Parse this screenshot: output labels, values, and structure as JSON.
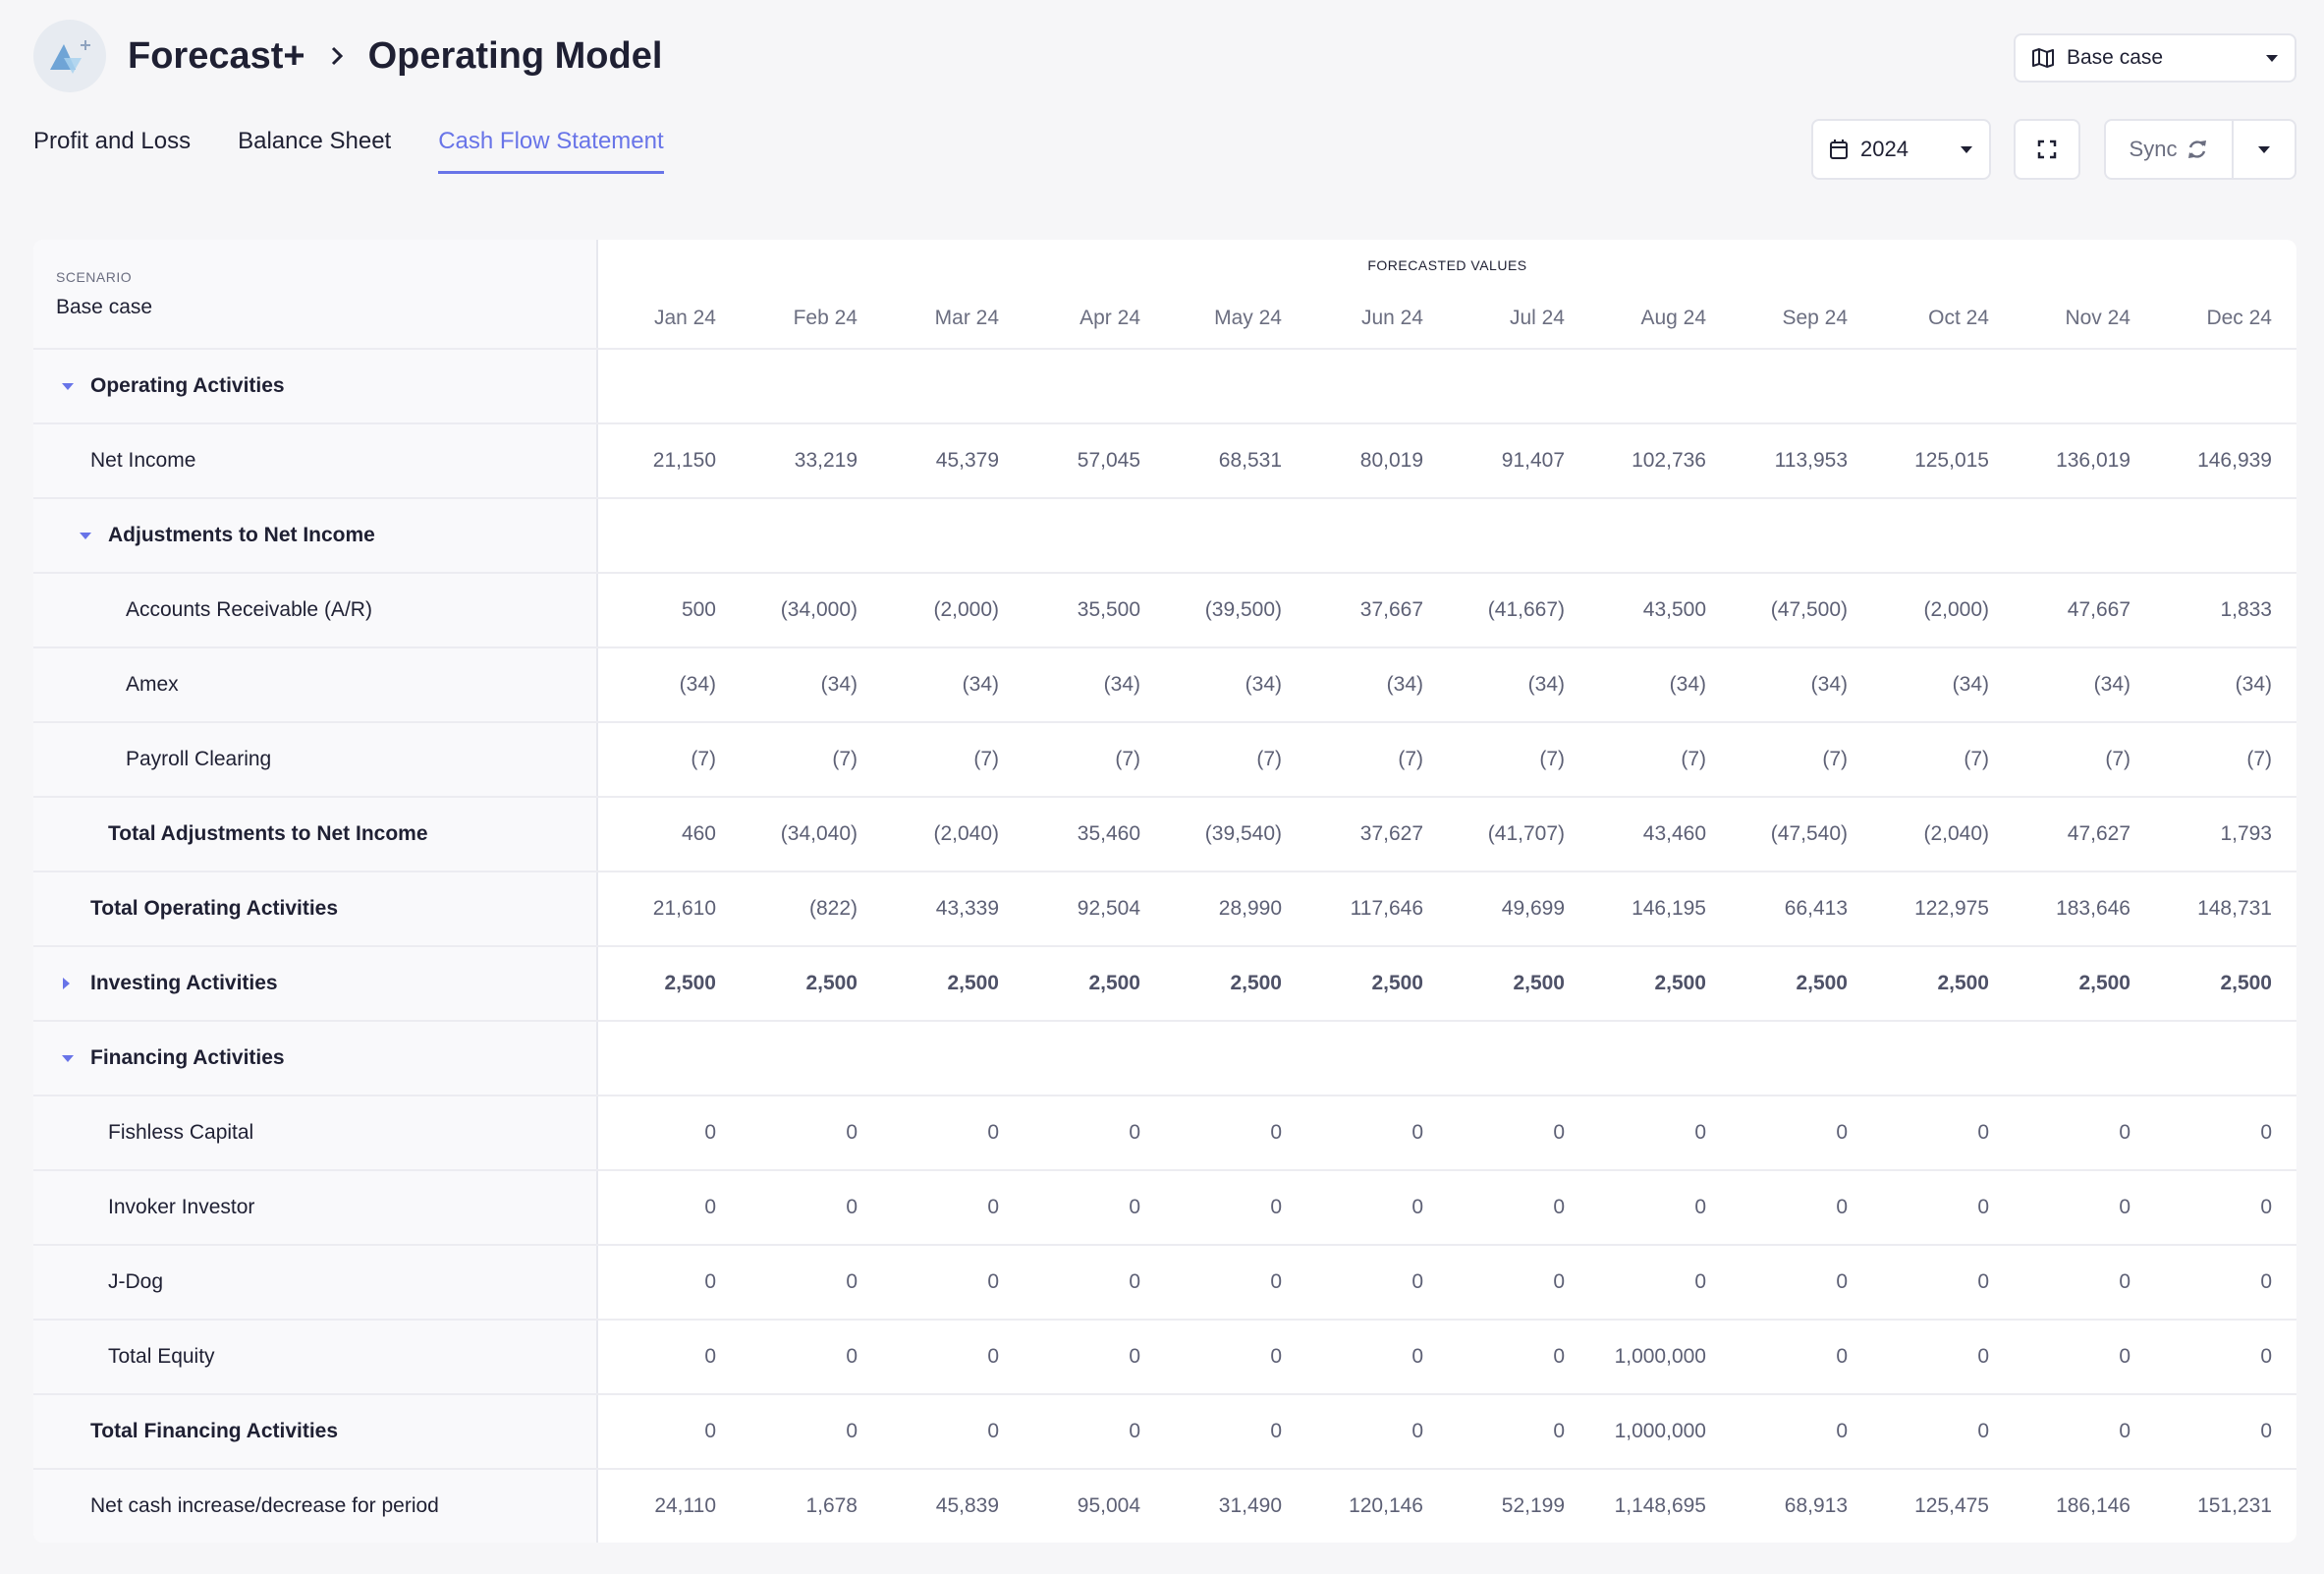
{
  "header": {
    "app": "Forecast+",
    "page": "Operating Model",
    "scenario_select": "Base case"
  },
  "tabs": [
    {
      "label": "Profit and Loss",
      "active": false
    },
    {
      "label": "Balance Sheet",
      "active": false
    },
    {
      "label": "Cash Flow Statement",
      "active": true
    }
  ],
  "toolbar": {
    "year": "2024",
    "sync_label": "Sync"
  },
  "colors": {
    "accent": "#6874e8",
    "text": "#1f2033",
    "muted": "#6b6e80"
  },
  "table": {
    "scenario_caption": "SCENARIO",
    "scenario_value": "Base case",
    "forecast_caption": "FORECASTED VALUES",
    "months": [
      "Jan 24",
      "Feb 24",
      "Mar 24",
      "Apr 24",
      "May 24",
      "Jun 24",
      "Jul 24",
      "Aug 24",
      "Sep 24",
      "Oct 24",
      "Nov 24",
      "Dec 24"
    ],
    "rows": [
      {
        "label": "Operating Activities",
        "indent": 0,
        "bold": true,
        "caret": "down",
        "values": []
      },
      {
        "label": "Net Income",
        "indent": 1,
        "bold": false,
        "caret": null,
        "values": [
          "21,150",
          "33,219",
          "45,379",
          "57,045",
          "68,531",
          "80,019",
          "91,407",
          "102,736",
          "113,953",
          "125,015",
          "136,019",
          "146,939"
        ]
      },
      {
        "label": "Adjustments to Net Income",
        "indent": 1,
        "bold": true,
        "caret": "down",
        "values": []
      },
      {
        "label": "Accounts Receivable (A/R)",
        "indent": 2,
        "bold": false,
        "caret": null,
        "values": [
          "500",
          "(34,000)",
          "(2,000)",
          "35,500",
          "(39,500)",
          "37,667",
          "(41,667)",
          "43,500",
          "(47,500)",
          "(2,000)",
          "47,667",
          "1,833"
        ]
      },
      {
        "label": "Amex",
        "indent": 2,
        "bold": false,
        "caret": null,
        "values": [
          "(34)",
          "(34)",
          "(34)",
          "(34)",
          "(34)",
          "(34)",
          "(34)",
          "(34)",
          "(34)",
          "(34)",
          "(34)",
          "(34)"
        ]
      },
      {
        "label": "Payroll Clearing",
        "indent": 2,
        "bold": false,
        "caret": null,
        "values": [
          "(7)",
          "(7)",
          "(7)",
          "(7)",
          "(7)",
          "(7)",
          "(7)",
          "(7)",
          "(7)",
          "(7)",
          "(7)",
          "(7)"
        ]
      },
      {
        "label": "Total Adjustments to Net Income",
        "indent": 1,
        "bold": true,
        "caret": null,
        "values": [
          "460",
          "(34,040)",
          "(2,040)",
          "35,460",
          "(39,540)",
          "37,627",
          "(41,707)",
          "43,460",
          "(47,540)",
          "(2,040)",
          "47,627",
          "1,793"
        ]
      },
      {
        "label": "Total Operating Activities",
        "indent": 0,
        "bold": true,
        "caret": null,
        "values": [
          "21,610",
          "(822)",
          "43,339",
          "92,504",
          "28,990",
          "117,646",
          "49,699",
          "146,195",
          "66,413",
          "122,975",
          "183,646",
          "148,731"
        ]
      },
      {
        "label": "Investing Activities",
        "indent": 0,
        "bold": true,
        "caret": "right",
        "bold_values": true,
        "values": [
          "2,500",
          "2,500",
          "2,500",
          "2,500",
          "2,500",
          "2,500",
          "2,500",
          "2,500",
          "2,500",
          "2,500",
          "2,500",
          "2,500"
        ]
      },
      {
        "label": "Financing Activities",
        "indent": 0,
        "bold": true,
        "caret": "down",
        "values": []
      },
      {
        "label": "Fishless Capital",
        "indent": 1,
        "bold": false,
        "caret": null,
        "values": [
          "0",
          "0",
          "0",
          "0",
          "0",
          "0",
          "0",
          "0",
          "0",
          "0",
          "0",
          "0"
        ]
      },
      {
        "label": "Invoker Investor",
        "indent": 1,
        "bold": false,
        "caret": null,
        "values": [
          "0",
          "0",
          "0",
          "0",
          "0",
          "0",
          "0",
          "0",
          "0",
          "0",
          "0",
          "0"
        ]
      },
      {
        "label": "J-Dog",
        "indent": 1,
        "bold": false,
        "caret": null,
        "values": [
          "0",
          "0",
          "0",
          "0",
          "0",
          "0",
          "0",
          "0",
          "0",
          "0",
          "0",
          "0"
        ]
      },
      {
        "label": "Total Equity",
        "indent": 1,
        "bold": false,
        "caret": null,
        "values": [
          "0",
          "0",
          "0",
          "0",
          "0",
          "0",
          "0",
          "1,000,000",
          "0",
          "0",
          "0",
          "0"
        ]
      },
      {
        "label": "Total Financing Activities",
        "indent": 0,
        "bold": true,
        "caret": null,
        "values": [
          "0",
          "0",
          "0",
          "0",
          "0",
          "0",
          "0",
          "1,000,000",
          "0",
          "0",
          "0",
          "0"
        ]
      },
      {
        "label": "Net cash increase/decrease for period",
        "indent": 0,
        "bold": false,
        "caret": null,
        "values": [
          "24,110",
          "1,678",
          "45,839",
          "95,004",
          "31,490",
          "120,146",
          "52,199",
          "1,148,695",
          "68,913",
          "125,475",
          "186,146",
          "151,231"
        ]
      }
    ]
  }
}
